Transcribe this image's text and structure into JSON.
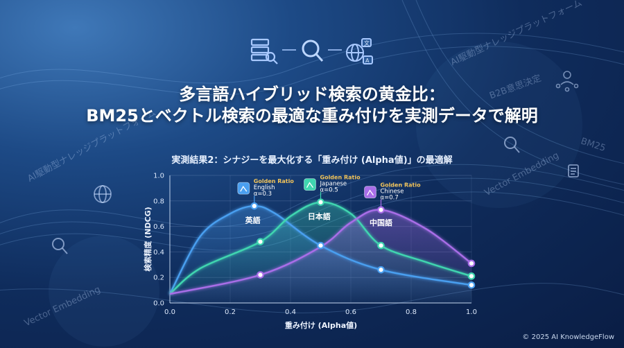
{
  "title_line1": "多言語ハイブリッド検索の黄金比：",
  "title_line2": "BM25とベクトル検索の最適な重み付けを実測データで解明",
  "footer": "© 2025 AI KnowledgeFlow",
  "background_texts": [
    "AI駆動型ナレッジプラットフォーム",
    "AI駆動型ナレッジプラットフォーム",
    "B2B意思決定",
    "BM25",
    "Vector Embedding",
    "Vector Embedding"
  ],
  "icons": [
    "database-search-icon",
    "magnifier-icon",
    "globe-translate-icon",
    "network-icon",
    "magnifier-icon",
    "document-icon",
    "globe-icon",
    "magnifier-icon"
  ],
  "chart_data": {
    "type": "line",
    "title": "実測結果2：シナジーを最大化する「重み付け (Alpha値)」の最適解",
    "xlabel": "重み付け (Alpha値)",
    "ylabel": "検索精度 (NDCG)",
    "xlim": [
      0,
      1
    ],
    "ylim": [
      0,
      1
    ],
    "xticks": [
      "0.0",
      "0.2",
      "0.4",
      "0.6",
      "0.8",
      "1.0"
    ],
    "yticks": [
      "0.0",
      "0.2",
      "0.4",
      "0.6",
      "0.8",
      "1.0"
    ],
    "series": [
      {
        "name": "英語",
        "color": "#4a9ff0",
        "points": [
          [
            0.0,
            0.07
          ],
          [
            0.1,
            0.52
          ],
          [
            0.2,
            0.7
          ],
          [
            0.28,
            0.76
          ],
          [
            0.35,
            0.7
          ],
          [
            0.5,
            0.45
          ],
          [
            0.7,
            0.26
          ],
          [
            1.0,
            0.14
          ]
        ],
        "markers": [
          [
            0.28,
            0.76
          ],
          [
            0.5,
            0.45
          ],
          [
            0.7,
            0.26
          ],
          [
            1.0,
            0.14
          ]
        ],
        "label_x": 0.275,
        "label_y": 0.65,
        "annotation": {
          "x": 0.28,
          "y": 0.76,
          "gold": "Golden Ratio",
          "line1": "English",
          "line2": "α=0.3"
        }
      },
      {
        "name": "日本語",
        "color": "#3fd6b0",
        "points": [
          [
            0.0,
            0.07
          ],
          [
            0.1,
            0.27
          ],
          [
            0.3,
            0.48
          ],
          [
            0.4,
            0.68
          ],
          [
            0.5,
            0.79
          ],
          [
            0.6,
            0.7
          ],
          [
            0.7,
            0.45
          ],
          [
            0.85,
            0.32
          ],
          [
            1.0,
            0.21
          ]
        ],
        "markers": [
          [
            0.3,
            0.48
          ],
          [
            0.5,
            0.79
          ],
          [
            0.7,
            0.45
          ],
          [
            1.0,
            0.21
          ]
        ],
        "label_x": 0.495,
        "label_y": 0.68,
        "annotation": {
          "x": 0.5,
          "y": 0.79,
          "gold": "Golden Ratio",
          "line1": "Japanese",
          "line2": "α=0.5"
        }
      },
      {
        "name": "中国語",
        "color": "#a96ee8",
        "points": [
          [
            0.0,
            0.07
          ],
          [
            0.3,
            0.22
          ],
          [
            0.5,
            0.44
          ],
          [
            0.6,
            0.63
          ],
          [
            0.7,
            0.73
          ],
          [
            0.85,
            0.58
          ],
          [
            1.0,
            0.31
          ]
        ],
        "markers": [
          [
            0.3,
            0.22
          ],
          [
            0.7,
            0.73
          ],
          [
            1.0,
            0.31
          ]
        ],
        "label_x": 0.7,
        "label_y": 0.63,
        "annotation": {
          "x": 0.7,
          "y": 0.73,
          "gold": "Golden Ratio",
          "line1": "Chinese",
          "line2": "α=0.7"
        }
      }
    ]
  }
}
